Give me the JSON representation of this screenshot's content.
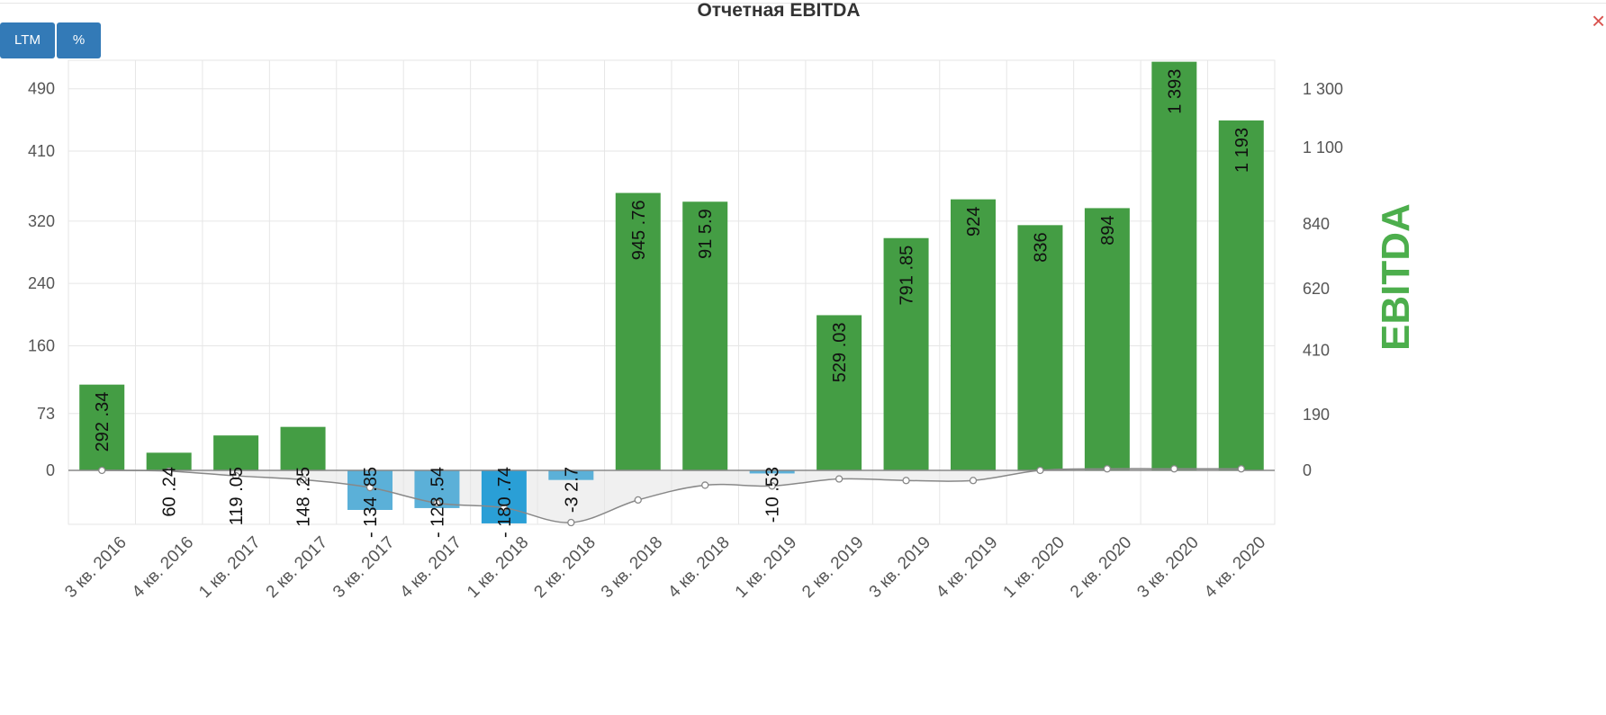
{
  "header": {
    "title": "Отчетная EBITDA",
    "ltm_label": "LTM",
    "percent_label": "%",
    "close_icon": "×"
  },
  "colors": {
    "positive": "#449d44",
    "negative_light": "#5bb0d8",
    "negative_dark": "#2a9fd6",
    "button": "#337ab7",
    "line": "#888888",
    "axis_title": "#4cae4c"
  },
  "chart_data": {
    "type": "bar",
    "title": "Отчетная EBITDA",
    "categories": [
      "3 кв. 2016",
      "4 кв. 2016",
      "1 кв. 2017",
      "2 кв. 2017",
      "3 кв. 2017",
      "4 кв. 2017",
      "1 кв. 2018",
      "2 кв. 2018",
      "3 кв. 2018",
      "4 кв. 2018",
      "1 кв. 2019",
      "2 кв. 2019",
      "3 кв. 2019",
      "4 кв. 2019",
      "1 кв. 2020",
      "2 кв. 2020",
      "3 кв. 2020",
      "4 кв. 2020"
    ],
    "series": [
      {
        "name": "EBITDA",
        "axis": "right",
        "values": [
          292.34,
          60.24,
          119.05,
          148.25,
          -134.85,
          -128.54,
          -180.74,
          -32.7,
          945.76,
          915.9,
          -10.53,
          529.03,
          791.85,
          924,
          836,
          894,
          1393,
          1193
        ],
        "labels": [
          "292 .34",
          "60 .24",
          "119 .05",
          "148 .25",
          "- 134 .85",
          "- 128 .54",
          "- 180 .74",
          "-3 2.7",
          "945 .76",
          "91 5.9",
          "-10 .53",
          "529 .03",
          "791 .85",
          "924",
          "836",
          "894",
          "1 393",
          "1 193"
        ]
      },
      {
        "axis": "left",
        "values": [
          0,
          -1,
          -7,
          -12,
          -22,
          -42,
          -48,
          -67,
          -38,
          -19,
          -20,
          -11,
          -13,
          -13,
          0,
          2,
          2,
          2
        ]
      }
    ],
    "ylabel_right": "EBITDA",
    "left_axis": {
      "ticks": [
        0,
        73,
        160,
        240,
        320,
        410,
        490
      ],
      "tick_labels": [
        "0",
        "73",
        "160",
        "240",
        "320",
        "410",
        "490"
      ],
      "range": [
        -68,
        527
      ]
    },
    "right_axis": {
      "ticks": [
        0,
        190,
        410,
        620,
        840,
        1100,
        1300
      ],
      "tick_labels": [
        "0",
        "190",
        "410",
        "620",
        "840",
        "1 100",
        "1 300"
      ],
      "range": [
        -196,
        1390
      ]
    },
    "grid": true,
    "legend": "none"
  }
}
